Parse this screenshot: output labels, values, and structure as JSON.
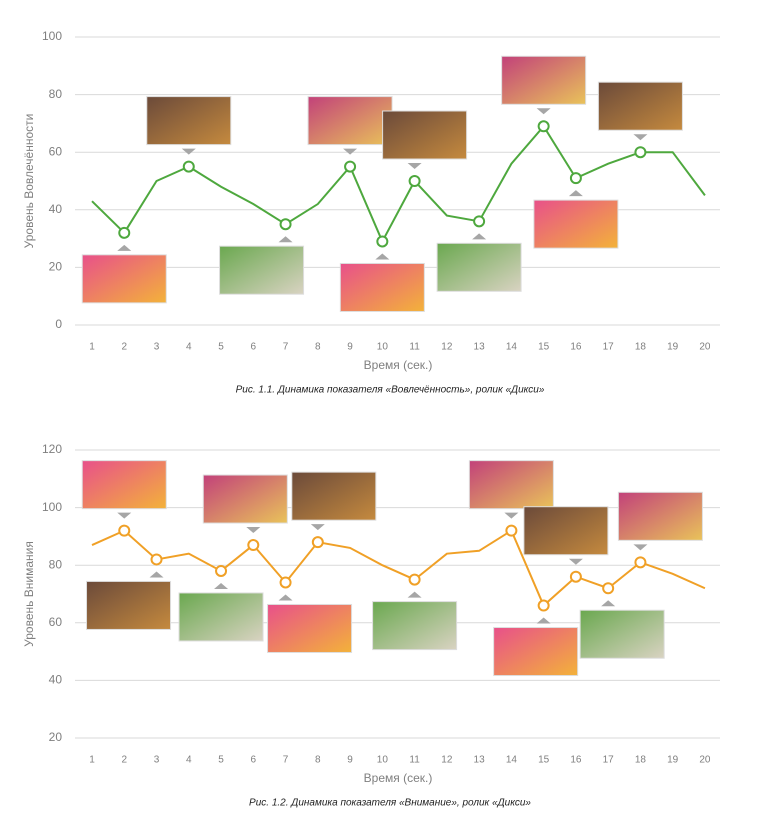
{
  "chart_data": [
    {
      "type": "line",
      "y_label": "Уровень Вовлечённости",
      "x_label": "Время (сек.)",
      "caption": "Рис. 1.1. Динамика показателя «Вовлечённость», ролик «Дикси»",
      "x": [
        1,
        2,
        3,
        4,
        5,
        6,
        7,
        8,
        9,
        10,
        11,
        12,
        13,
        14,
        15,
        16,
        17,
        18,
        19,
        20
      ],
      "values": [
        43,
        32,
        50,
        55,
        48,
        42,
        35,
        42,
        55,
        29,
        50,
        38,
        36,
        56,
        69,
        51,
        56,
        60,
        60,
        45
      ],
      "marker_x": [
        2,
        4,
        7,
        9,
        10,
        11,
        13,
        15,
        16,
        18
      ],
      "color": "#4ea83e",
      "ylim": [
        0,
        100
      ],
      "yticks": [
        0,
        20,
        40,
        60,
        80,
        100
      ],
      "grid": true
    },
    {
      "type": "line",
      "y_label": "Уровень Внимания",
      "x_label": "Время (сек.)",
      "caption": "Рис. 1.2. Динамика показателя «Внимание», ролик «Дикси»",
      "x": [
        1,
        2,
        3,
        4,
        5,
        6,
        7,
        8,
        9,
        10,
        11,
        12,
        13,
        14,
        15,
        16,
        17,
        18,
        19,
        20
      ],
      "values": [
        87,
        92,
        82,
        84,
        78,
        87,
        74,
        88,
        86,
        80,
        75,
        84,
        85,
        92,
        66,
        76,
        72,
        81,
        77,
        72
      ],
      "marker_x": [
        2,
        3,
        5,
        6,
        7,
        8,
        11,
        14,
        15,
        16,
        17,
        18
      ],
      "color": "#f0a026",
      "ylim": [
        20,
        120
      ],
      "yticks": [
        20,
        40,
        60,
        80,
        100,
        120
      ],
      "grid": true
    }
  ]
}
